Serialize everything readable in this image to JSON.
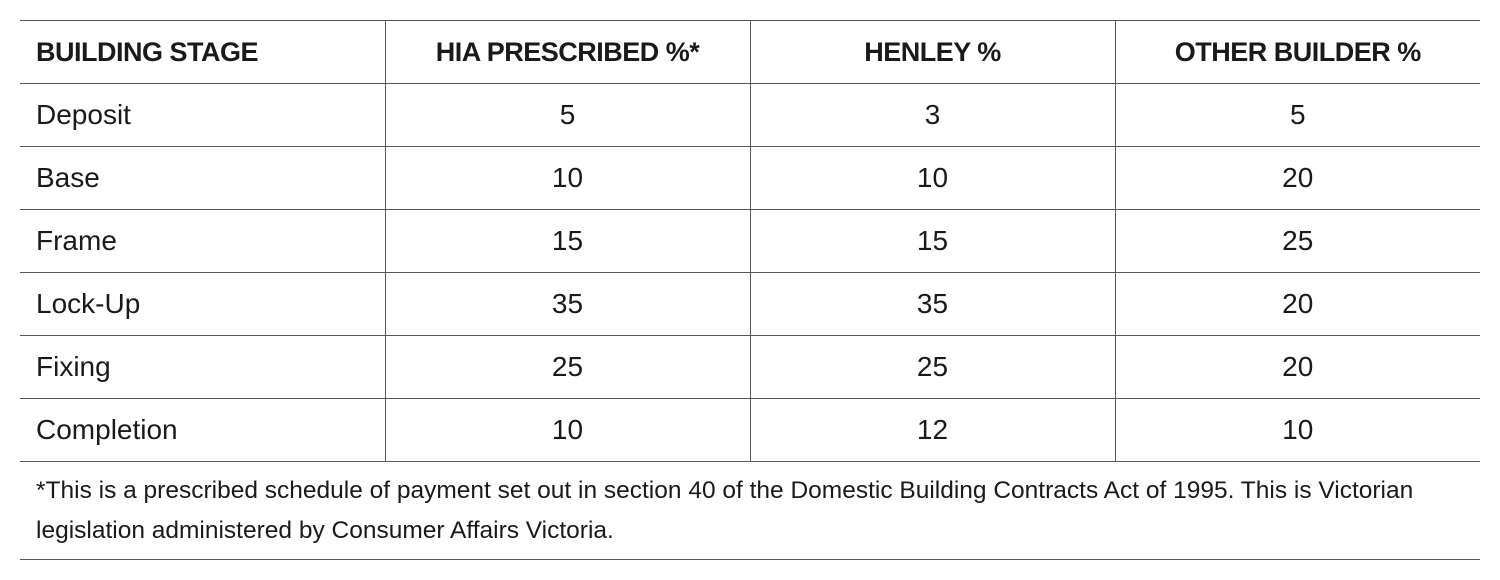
{
  "table": {
    "headers": [
      "BUILDING STAGE",
      "HIA PRESCRIBED %*",
      "HENLEY %",
      "OTHER BUILDER %"
    ],
    "rows": [
      [
        "Deposit",
        "5",
        "3",
        "5"
      ],
      [
        "Base",
        "10",
        "10",
        "20"
      ],
      [
        "Frame",
        "15",
        "15",
        "25"
      ],
      [
        "Lock-Up",
        "35",
        "35",
        "20"
      ],
      [
        "Fixing",
        "25",
        "25",
        "20"
      ],
      [
        "Completion",
        "10",
        "12",
        "10"
      ]
    ]
  },
  "footnote": "*This is a prescribed schedule of payment set out in section 40 of the Domestic Building Contracts Act of 1995. This is Victorian legislation administered by Consumer Affairs Victoria."
}
